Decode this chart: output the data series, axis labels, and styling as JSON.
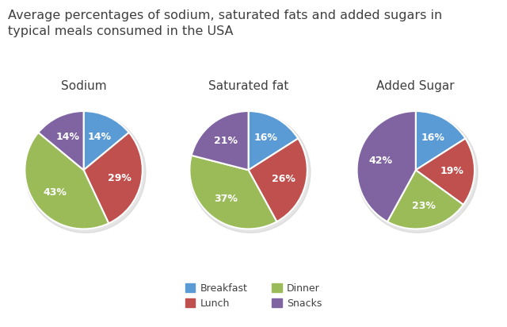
{
  "title": "Average percentages of sodium, saturated fats and added sugars in\ntypical meals consumed in the USA",
  "title_fontsize": 11.5,
  "charts": [
    {
      "label": "Sodium",
      "values": [
        14,
        29,
        43,
        14
      ],
      "startangle": 90
    },
    {
      "label": "Saturated fat",
      "values": [
        16,
        26,
        37,
        21
      ],
      "startangle": 90
    },
    {
      "label": "Added Sugar",
      "values": [
        16,
        19,
        23,
        42
      ],
      "startangle": 90
    }
  ],
  "categories": [
    "Breakfast",
    "Lunch",
    "Dinner",
    "Snacks"
  ],
  "colors": [
    "#5B9BD5",
    "#C0504D",
    "#9BBB59",
    "#8064A2"
  ],
  "pct_fontsize": 9,
  "label_fontsize": 11,
  "legend_fontsize": 9,
  "background_color": "#FFFFFF",
  "shadow_color": "#DDDDDD"
}
